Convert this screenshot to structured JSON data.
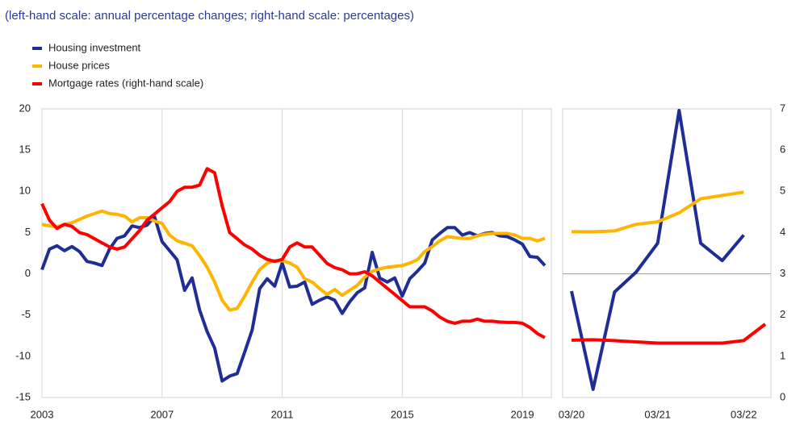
{
  "subtitle": "(left-hand scale: annual percentage changes; right-hand scale: percentages)",
  "chart_data": [
    {
      "type": "line",
      "x": [
        2003,
        2003.25,
        2003.5,
        2003.75,
        2004,
        2004.25,
        2004.5,
        2004.75,
        2005,
        2005.25,
        2005.5,
        2005.75,
        2006,
        2006.25,
        2006.5,
        2006.75,
        2007,
        2007.25,
        2007.5,
        2007.75,
        2008,
        2008.25,
        2008.5,
        2008.75,
        2009,
        2009.25,
        2009.5,
        2009.75,
        2010,
        2010.25,
        2010.5,
        2010.75,
        2011,
        2011.25,
        2011.5,
        2011.75,
        2012,
        2012.25,
        2012.5,
        2012.75,
        2013,
        2013.25,
        2013.5,
        2013.75,
        2014,
        2014.25,
        2014.5,
        2014.75,
        2015,
        2015.25,
        2015.5,
        2015.75,
        2016,
        2016.25,
        2016.5,
        2016.75,
        2017,
        2017.25,
        2017.5,
        2017.75,
        2018,
        2018.25,
        2018.5,
        2018.75,
        2019,
        2019.25,
        2019.5,
        2019.75
      ],
      "xlim": [
        2003,
        2019.75
      ],
      "xticks": [
        2003,
        2007,
        2011,
        2015,
        2019
      ],
      "ylim": [
        -15,
        20
      ],
      "yticks": [
        -15,
        -10,
        -5,
        0,
        5,
        10,
        15,
        20
      ],
      "y2lim": [
        0,
        7
      ],
      "grid": "x",
      "series": [
        {
          "name": "Housing investment",
          "color": "#1f2d96",
          "values": [
            0.5,
            3,
            3.4,
            2.8,
            3.3,
            2.7,
            1.5,
            1.3,
            1.0,
            3,
            4.3,
            4.6,
            5.8,
            5.6,
            5.9,
            6.9,
            3.9,
            2.8,
            1.7,
            -2,
            -0.5,
            -4.4,
            -7,
            -9,
            -13,
            -12.4,
            -12.1,
            -9.5,
            -6.8,
            -1.8,
            -0.6,
            -1.5,
            1.3,
            -1.6,
            -1.5,
            -1,
            -3.7,
            -3.2,
            -2.8,
            -3.2,
            -4.8,
            -3.4,
            -2.3,
            -1.7,
            2.6,
            -0.5,
            -1,
            -0.5,
            -2.7,
            -0.6,
            0.3,
            1.3,
            4.1,
            4.9,
            5.6,
            5.6,
            4.7,
            5,
            4.6,
            4.9,
            5,
            4.6,
            4.5,
            4.1,
            3.6,
            2.1,
            2,
            1
          ]
        },
        {
          "name": "House prices",
          "color": "#ffb400",
          "values": [
            6,
            5.8,
            5.7,
            6.0,
            6.2,
            6.6,
            7.0,
            7.3,
            7.6,
            7.3,
            7.2,
            7.0,
            6.3,
            6.8,
            6.8,
            6.4,
            6.1,
            4.7,
            4.0,
            3.7,
            3.4,
            2.2,
            0.8,
            -1.0,
            -3.2,
            -4.4,
            -4.2,
            -2.7,
            -1.0,
            0.5,
            1.3,
            1.6,
            1.6,
            1.3,
            0.8,
            -0.6,
            -1.0,
            -1.8,
            -2.5,
            -1.9,
            -2.6,
            -2.0,
            -1.4,
            -0.4,
            0.3,
            0.6,
            0.8,
            0.9,
            1.0,
            1.3,
            1.7,
            2.7,
            3.3,
            4.0,
            4.5,
            4.4,
            4.3,
            4.3,
            4.6,
            4.8,
            4.9,
            4.9,
            4.9,
            4.7,
            4.3,
            4.3,
            4.0,
            4.3
          ]
        },
        {
          "name": "Mortgage rates (right-hand scale)",
          "color": "#ff0000",
          "axis": "y2",
          "values": [
            4.7,
            4.3,
            4.1,
            4.2,
            4.15,
            4.0,
            3.95,
            3.85,
            3.75,
            3.65,
            3.6,
            3.65,
            3.85,
            4.05,
            4.3,
            4.45,
            4.6,
            4.75,
            5.0,
            5.1,
            5.1,
            5.15,
            5.55,
            5.45,
            4.65,
            4.0,
            3.85,
            3.7,
            3.6,
            3.45,
            3.35,
            3.3,
            3.35,
            3.65,
            3.75,
            3.65,
            3.65,
            3.45,
            3.25,
            3.15,
            3.1,
            3.0,
            3.0,
            3.05,
            2.95,
            2.8,
            2.65,
            2.5,
            2.35,
            2.2,
            2.2,
            2.2,
            2.1,
            1.95,
            1.85,
            1.8,
            1.85,
            1.85,
            1.9,
            1.85,
            1.85,
            1.83,
            1.82,
            1.82,
            1.8,
            1.7,
            1.55,
            1.45
          ]
        }
      ]
    },
    {
      "type": "line",
      "categories": [
        "03/20",
        null,
        null,
        null,
        "03/21",
        null,
        null,
        null,
        "03/22",
        null
      ],
      "ylim": [
        -15,
        20
      ],
      "y2lim": [
        0,
        7
      ],
      "y2ticks": [
        0,
        1,
        2,
        3,
        4,
        5,
        6,
        7
      ],
      "series": [
        {
          "color": "#1f2d96",
          "values": [
            -2.1,
            -14,
            -2.2,
            0.2,
            3.7,
            19.8,
            3.7,
            1.6,
            4.7,
            null
          ]
        },
        {
          "color": "#ffb400",
          "values": [
            5.1,
            5.1,
            5.2,
            6.0,
            6.3,
            7.4,
            9.1,
            9.5,
            9.9,
            null
          ]
        },
        {
          "color": "#ff0000",
          "axis": "y2",
          "values": [
            1.39,
            1.4,
            1.38,
            1.35,
            1.32,
            1.32,
            1.32,
            1.32,
            1.38,
            1.78
          ]
        }
      ]
    }
  ]
}
